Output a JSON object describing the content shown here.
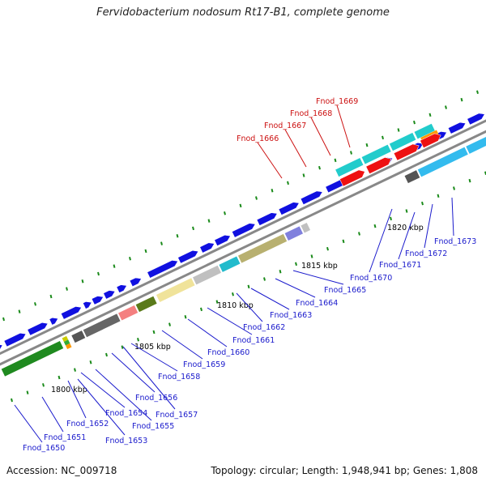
{
  "title": "Fervidobacterium nodosum Rt17-B1, complete genome",
  "accession": "Accession: NC_009718",
  "summary": "Topology: circular; Length: 1,948,941 bp; Genes: 1,808",
  "colors": {
    "forward_gene": "#1010e0",
    "link_blue": "#1a1acc",
    "link_red": "#cc1111",
    "backbone": "#888888",
    "tick": "#1a8a1a"
  },
  "scale_labels": [
    "1800 kbp",
    "1805 kbp",
    "1810 kbp",
    "1815 kbp",
    "1820 kbp"
  ],
  "gene_labels_bottom": [
    "Fnod_1650",
    "Fnod_1651",
    "Fnod_1652",
    "Fnod_1653",
    "Fnod_1654",
    "Fnod_1655",
    "Fnod_1656",
    "Fnod_1657",
    "Fnod_1658",
    "Fnod_1659",
    "Fnod_1660",
    "Fnod_1661",
    "Fnod_1662",
    "Fnod_1663",
    "Fnod_1664",
    "Fnod_1665",
    "Fnod_1670",
    "Fnod_1671",
    "Fnod_1672",
    "Fnod_1673"
  ],
  "gene_labels_top": [
    "Fnod_1666",
    "Fnod_1667",
    "Fnod_1668",
    "Fnod_1669"
  ]
}
